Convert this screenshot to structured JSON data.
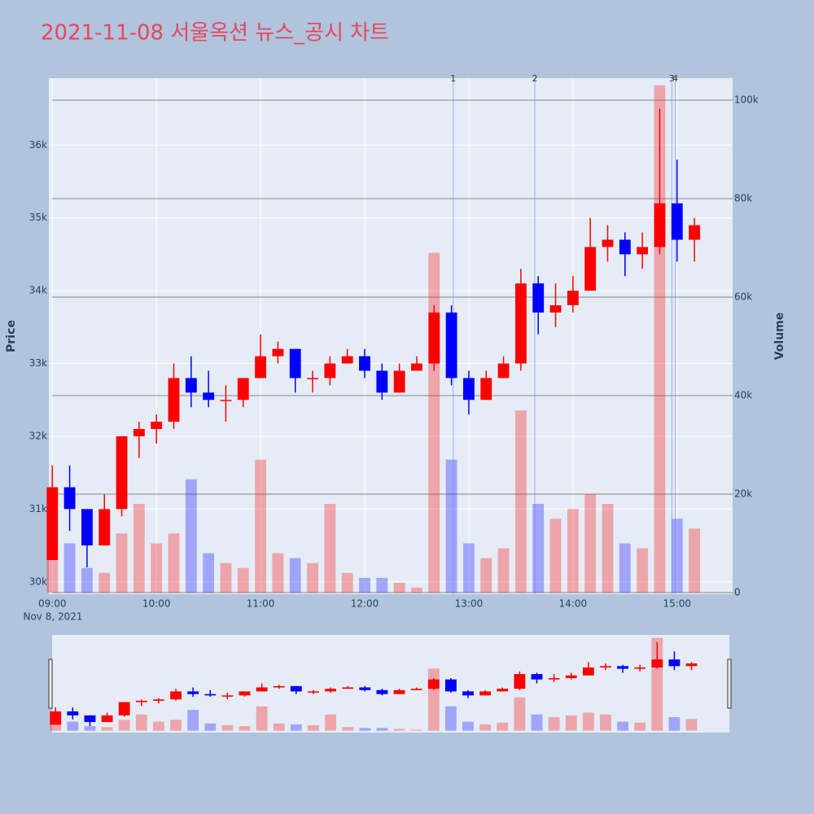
{
  "chart_data": {
    "type": "candlestick",
    "title": "2021-11-08 서울옥션 뉴스_공시 차트",
    "ylabel": "Price",
    "y2label": "Volume",
    "x_date_label": "Nov 8, 2021",
    "x": [
      "09:00",
      "09:10",
      "09:20",
      "09:30",
      "09:40",
      "09:50",
      "10:00",
      "10:10",
      "10:20",
      "10:30",
      "10:40",
      "10:50",
      "11:00",
      "11:10",
      "11:20",
      "11:30",
      "11:40",
      "11:50",
      "12:00",
      "12:10",
      "12:20",
      "12:30",
      "12:40",
      "12:50",
      "13:00",
      "13:10",
      "13:20",
      "13:30",
      "13:40",
      "13:50",
      "14:00",
      "14:10",
      "14:20",
      "14:30",
      "14:40",
      "14:50",
      "15:00",
      "15:10"
    ],
    "open": [
      30300,
      31300,
      31000,
      30500,
      31000,
      32000,
      32100,
      32200,
      32800,
      32600,
      32500,
      32500,
      32800,
      33100,
      33200,
      32800,
      32800,
      33000,
      33100,
      32900,
      32600,
      32900,
      33000,
      33700,
      32800,
      32500,
      32800,
      33000,
      34100,
      33700,
      33800,
      34000,
      34600,
      34700,
      34500,
      34600,
      35200,
      34700
    ],
    "high": [
      31600,
      31600,
      31000,
      31200,
      32000,
      32200,
      32300,
      33000,
      33100,
      32900,
      32700,
      32800,
      33400,
      33300,
      33200,
      32900,
      33100,
      33200,
      33200,
      33000,
      33000,
      33100,
      33800,
      33800,
      32900,
      32900,
      33100,
      34300,
      34200,
      34100,
      34200,
      35000,
      34900,
      34800,
      34800,
      36500,
      35800,
      35000
    ],
    "low": [
      30300,
      30700,
      30200,
      30500,
      30900,
      31700,
      31900,
      32100,
      32400,
      32400,
      32200,
      32400,
      32800,
      33000,
      32600,
      32600,
      32700,
      33000,
      32800,
      32500,
      32600,
      32900,
      32900,
      32700,
      32300,
      32500,
      32800,
      32900,
      33400,
      33500,
      33700,
      34000,
      34400,
      34200,
      34300,
      34500,
      34400,
      34400
    ],
    "close": [
      31300,
      31000,
      30500,
      31000,
      32000,
      32100,
      32200,
      32800,
      32600,
      32500,
      32500,
      32800,
      33100,
      33200,
      32800,
      32800,
      33000,
      33100,
      32900,
      32600,
      32900,
      33000,
      33700,
      32800,
      32500,
      32800,
      33000,
      34100,
      33700,
      33800,
      34000,
      34600,
      34700,
      34500,
      34600,
      35200,
      34700,
      34900
    ],
    "volume": [
      8000,
      10000,
      5000,
      4000,
      12000,
      18000,
      10000,
      12000,
      23000,
      8000,
      6000,
      5000,
      27000,
      8000,
      7000,
      6000,
      18000,
      4000,
      3000,
      3000,
      2000,
      1000,
      69000,
      27000,
      10000,
      7000,
      9000,
      37000,
      18000,
      15000,
      17000,
      20000,
      18000,
      10000,
      9000,
      103000,
      15000,
      13000
    ],
    "increasing_color": "#ff0000",
    "decreasing_color": "#0000ff",
    "xlim": [
      "08:58",
      "15:32"
    ],
    "xticks": [
      "09:00",
      "10:00",
      "11:00",
      "12:00",
      "13:00",
      "14:00",
      "15:00"
    ],
    "ylim": [
      29830,
      36920
    ],
    "yticks": [
      {
        "value": 30000,
        "label": "30k"
      },
      {
        "value": 31000,
        "label": "31k"
      },
      {
        "value": 32000,
        "label": "32k"
      },
      {
        "value": 33000,
        "label": "33k"
      },
      {
        "value": 34000,
        "label": "34k"
      },
      {
        "value": 35000,
        "label": "35k"
      },
      {
        "value": 36000,
        "label": "36k"
      }
    ],
    "y2lim": [
      -330,
      104460
    ],
    "y2ticks": [
      0,
      {
        "value": 20000,
        "label": "20k"
      },
      {
        "value": 40000,
        "label": "40k"
      },
      {
        "value": 60000,
        "label": "60k"
      },
      {
        "value": 80000,
        "label": "80k"
      },
      {
        "value": 100000,
        "label": "100k"
      }
    ],
    "annotations": [
      {
        "x": "12:51",
        "label": "1"
      },
      {
        "x": "13:38",
        "label": "2"
      },
      {
        "x": "14:57",
        "label": "3"
      },
      {
        "x": "14:59",
        "label": "4"
      }
    ],
    "rangeslider": true
  }
}
